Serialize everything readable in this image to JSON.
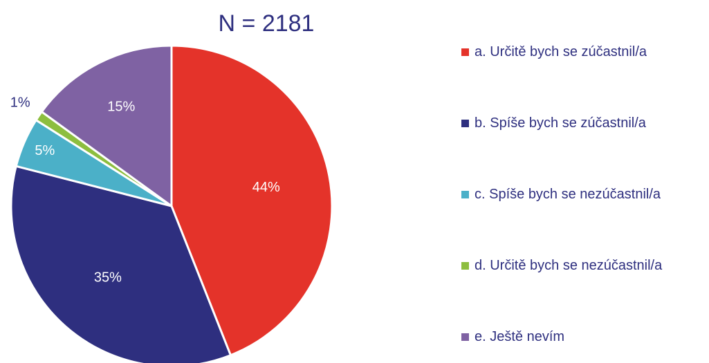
{
  "chart_data": {
    "type": "pie",
    "title": "N = 2181",
    "categories": [
      "a. Určitě bych se zúčastnil/a",
      "b. Spíše bych se zúčastnil/a",
      "c. Spíše bych se nezúčastnil/a",
      "d. Určitě bych se nezúčastnil/a",
      "e. Ještě nevím"
    ],
    "values": [
      44,
      35,
      5,
      1,
      15
    ],
    "value_labels": [
      "44%",
      "35%",
      "5%",
      "1%",
      "15%"
    ],
    "colors": [
      "#e4332a",
      "#2e2f7f",
      "#4bb0c8",
      "#8dbe3f",
      "#7f62a3"
    ],
    "legend": "right"
  }
}
